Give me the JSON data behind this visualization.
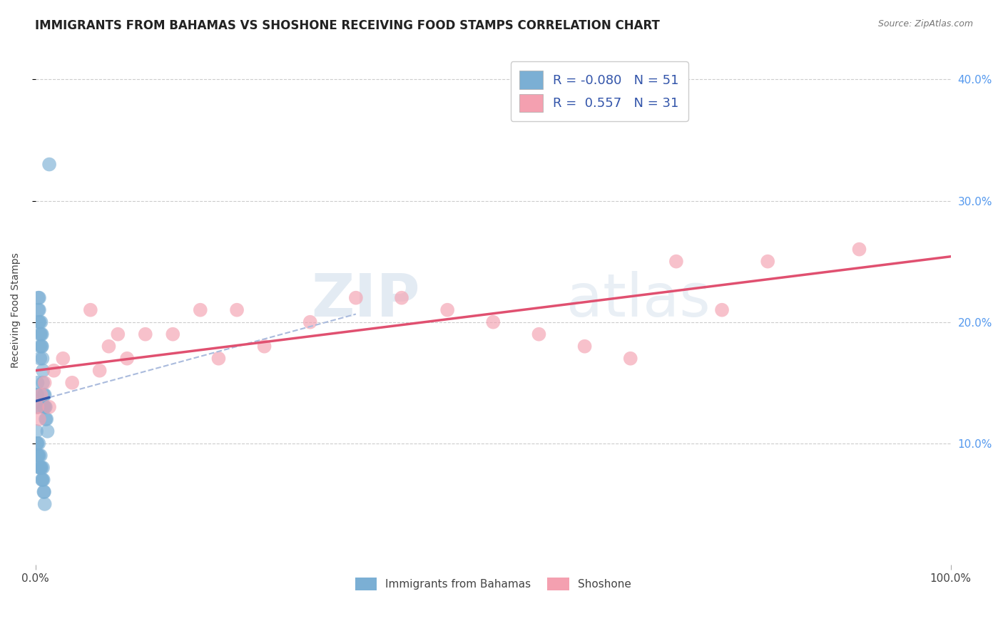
{
  "title": "IMMIGRANTS FROM BAHAMAS VS SHOSHONE RECEIVING FOOD STAMPS CORRELATION CHART",
  "source_text": "Source: ZipAtlas.com",
  "ylabel": "Receiving Food Stamps",
  "blue_R": -0.08,
  "blue_N": 51,
  "pink_R": 0.557,
  "pink_N": 31,
  "blue_color": "#7bafd4",
  "pink_color": "#f4a0b0",
  "blue_line_color": "#3355aa",
  "pink_line_color": "#e05070",
  "blue_dashed_color": "#aabbdd",
  "watermark_zip": "ZIP",
  "watermark_atlas": "atlas",
  "background_color": "#ffffff",
  "grid_color": "#cccccc",
  "blue_scatter_x": [
    0.1,
    0.15,
    0.2,
    0.2,
    0.25,
    0.3,
    0.3,
    0.35,
    0.4,
    0.4,
    0.45,
    0.5,
    0.5,
    0.5,
    0.6,
    0.6,
    0.65,
    0.7,
    0.7,
    0.75,
    0.8,
    0.8,
    0.9,
    0.9,
    1.0,
    1.0,
    1.1,
    1.1,
    1.2,
    1.3,
    0.1,
    0.15,
    0.2,
    0.25,
    0.3,
    0.35,
    0.4,
    0.45,
    0.5,
    0.55,
    0.6,
    0.65,
    0.7,
    0.75,
    0.8,
    0.85,
    0.9,
    0.95,
    1.0,
    1.0,
    1.5
  ],
  "blue_scatter_y": [
    14,
    13,
    15,
    14,
    13,
    22,
    21,
    20,
    22,
    21,
    20,
    19,
    18,
    17,
    20,
    19,
    18,
    19,
    18,
    17,
    16,
    15,
    14,
    13,
    14,
    13,
    13,
    12,
    12,
    11,
    11,
    10,
    10,
    9,
    9,
    10,
    9,
    8,
    8,
    9,
    8,
    8,
    7,
    7,
    8,
    7,
    6,
    6,
    5,
    13,
    33
  ],
  "pink_scatter_x": [
    0.2,
    0.4,
    0.6,
    1.0,
    1.5,
    2.0,
    3.0,
    4.0,
    6.0,
    7.0,
    8.0,
    9.0,
    10.0,
    12.0,
    15.0,
    18.0,
    20.0,
    22.0,
    25.0,
    30.0,
    35.0,
    40.0,
    45.0,
    50.0,
    55.0,
    60.0,
    65.0,
    70.0,
    75.0,
    80.0,
    90.0
  ],
  "pink_scatter_y": [
    13,
    12,
    14,
    15,
    13,
    16,
    17,
    15,
    21,
    16,
    18,
    19,
    17,
    19,
    19,
    21,
    17,
    21,
    18,
    20,
    22,
    22,
    21,
    20,
    19,
    18,
    17,
    25,
    21,
    25,
    26
  ],
  "xlim": [
    0,
    100
  ],
  "ylim": [
    0,
    42
  ],
  "title_fontsize": 12,
  "axis_label_fontsize": 10
}
